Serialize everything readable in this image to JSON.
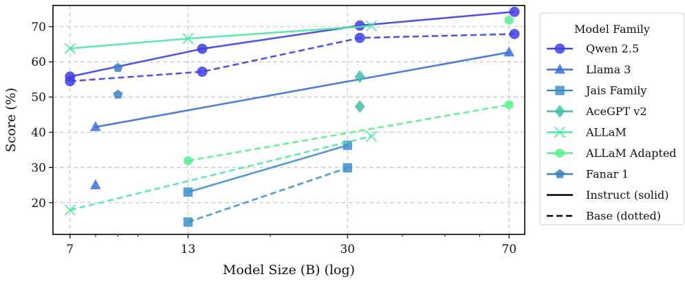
{
  "chart_data": {
    "type": "line",
    "xlabel": "Model Size (B) (log)",
    "ylabel": "Score (%)",
    "xscale": "log",
    "xlim": [
      6.4,
      76
    ],
    "ylim": [
      11,
      76
    ],
    "xticks": [
      7,
      13,
      30,
      70
    ],
    "xtick_labels": [
      "7",
      "13",
      "30",
      "70"
    ],
    "yticks": [
      20,
      30,
      40,
      50,
      60,
      70
    ],
    "ytick_labels": [
      "20",
      "30",
      "40",
      "50",
      "60",
      "70"
    ],
    "grid": "dashed",
    "legend": {
      "title": "Model Family",
      "placement": "right outside",
      "entries": [
        "Qwen 2.5",
        "Llama 3",
        "Jais Family",
        "AceGPT v2",
        "ALLaM",
        "ALLaM Adapted",
        "Fanar 1"
      ],
      "style_entries": [
        "Instruct (solid)",
        "Base (dotted)"
      ]
    },
    "series": [
      {
        "name": "Qwen 2.5",
        "variant": "instruct",
        "color": "#3f3fe0",
        "marker": "circle",
        "x": [
          7,
          14,
          32,
          72
        ],
        "y": [
          55.8,
          63.7,
          70.3,
          74.2
        ]
      },
      {
        "name": "Qwen 2.5",
        "variant": "base",
        "color": "#3f3fe0",
        "marker": "circle",
        "x": [
          7,
          14,
          32,
          72
        ],
        "y": [
          54.5,
          57.2,
          66.8,
          67.9
        ]
      },
      {
        "name": "Llama 3",
        "variant": "instruct",
        "color": "#3a6fd8",
        "marker": "triangle",
        "x": [
          8,
          70
        ],
        "y": [
          41.5,
          62.7
        ]
      },
      {
        "name": "Llama 3",
        "variant": "base",
        "color": "#3a6fd8",
        "marker": "triangle",
        "x": [
          8
        ],
        "y": [
          25.0
        ]
      },
      {
        "name": "Jais Family",
        "variant": "instruct",
        "color": "#3d8fc8",
        "marker": "square",
        "x": [
          13,
          30
        ],
        "y": [
          23.0,
          36.3
        ]
      },
      {
        "name": "Jais Family",
        "variant": "base",
        "color": "#3d8fc8",
        "marker": "square",
        "x": [
          13,
          30
        ],
        "y": [
          14.5,
          29.9
        ]
      },
      {
        "name": "AceGPT v2",
        "variant": "instruct",
        "color": "#3fbfa8",
        "marker": "diamond",
        "x": [
          32
        ],
        "y": [
          55.8
        ]
      },
      {
        "name": "AceGPT v2",
        "variant": "base",
        "color": "#3fbfa8",
        "marker": "diamond",
        "x": [
          32
        ],
        "y": [
          47.3
        ]
      },
      {
        "name": "ALLaM",
        "variant": "instruct",
        "color": "#4ee8a4",
        "marker": "x",
        "x": [
          7,
          13,
          34
        ],
        "y": [
          63.8,
          66.6,
          70.2
        ]
      },
      {
        "name": "ALLaM",
        "variant": "base",
        "color": "#4ee8a4",
        "marker": "x",
        "x": [
          7,
          34
        ],
        "y": [
          17.9,
          38.9
        ]
      },
      {
        "name": "ALLaM Adapted",
        "variant": "instruct",
        "color": "#55f08a",
        "marker": "hexagon",
        "x": [
          70
        ],
        "y": [
          71.8
        ]
      },
      {
        "name": "ALLaM Adapted",
        "variant": "base",
        "color": "#55f08a",
        "marker": "hexagon",
        "x": [
          13,
          70
        ],
        "y": [
          31.9,
          47.8
        ]
      },
      {
        "name": "Fanar 1",
        "variant": "instruct",
        "color": "#3b7fc4",
        "marker": "pentagon",
        "x": [
          9
        ],
        "y": [
          58.3
        ]
      },
      {
        "name": "Fanar 1",
        "variant": "base",
        "color": "#3b7fc4",
        "marker": "pentagon",
        "x": [
          9
        ],
        "y": [
          50.7
        ]
      }
    ]
  }
}
